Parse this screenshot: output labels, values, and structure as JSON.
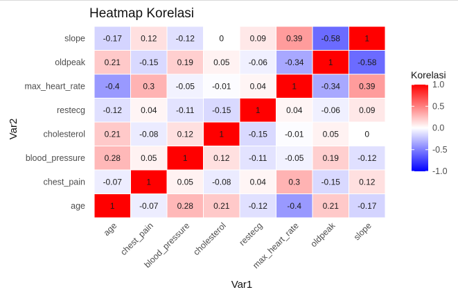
{
  "chart_data": {
    "type": "heatmap",
    "title": "Heatmap Korelasi",
    "xlabel": "Var1",
    "ylabel": "Var2",
    "x_categories": [
      "age",
      "chest_pain",
      "blood_pressure",
      "cholesterol",
      "restecg",
      "max_heart_rate",
      "oldpeak",
      "slope"
    ],
    "y_categories": [
      "age",
      "chest_pain",
      "blood_pressure",
      "cholesterol",
      "restecg",
      "max_heart_rate",
      "oldpeak",
      "slope"
    ],
    "values": [
      [
        1,
        -0.07,
        0.28,
        0.21,
        -0.12,
        -0.4,
        0.21,
        -0.17
      ],
      [
        -0.07,
        1,
        0.05,
        -0.08,
        0.04,
        0.3,
        -0.15,
        0.12
      ],
      [
        0.28,
        0.05,
        1,
        0.12,
        -0.11,
        -0.05,
        0.19,
        -0.12
      ],
      [
        0.21,
        -0.08,
        0.12,
        1,
        -0.15,
        -0.01,
        0.05,
        0
      ],
      [
        -0.12,
        0.04,
        -0.11,
        -0.15,
        1,
        0.04,
        -0.06,
        0.09
      ],
      [
        -0.4,
        0.3,
        -0.05,
        -0.01,
        0.04,
        1,
        -0.34,
        0.39
      ],
      [
        0.21,
        -0.15,
        0.19,
        0.05,
        -0.06,
        -0.34,
        1,
        -0.58
      ],
      [
        -0.17,
        0.12,
        -0.12,
        0,
        0.09,
        0.39,
        -0.58,
        1
      ]
    ],
    "legend": {
      "title": "Korelasi",
      "range": [
        -1,
        1
      ],
      "ticks": [
        1.0,
        0.5,
        0.0,
        -0.5,
        -1.0
      ],
      "tick_labels": [
        "1.0",
        "0.5",
        "0.0",
        "-0.5",
        "-1.0"
      ],
      "position": "right"
    },
    "colors": {
      "low": "#0000ff",
      "mid": "#ffffff",
      "high": "#ff0000"
    },
    "grid": false
  }
}
